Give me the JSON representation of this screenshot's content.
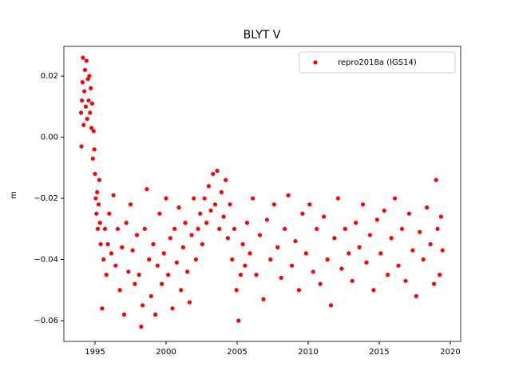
{
  "chart_data": {
    "type": "scatter",
    "title": "BLYT V",
    "y_label": "m",
    "x": [
      1994.02,
      1994.05,
      1994.08,
      1994.12,
      1994.15,
      1994.2,
      1994.25,
      1994.3,
      1994.35,
      1994.4,
      1994.45,
      1994.5,
      1994.55,
      1994.6,
      1994.65,
      1994.7,
      1994.75,
      1994.8,
      1994.85,
      1994.9,
      1994.95,
      1995.0,
      1995.05,
      1995.1,
      1995.15,
      1995.2,
      1995.25,
      1995.3,
      1995.35,
      1995.4,
      1995.5,
      1995.6,
      1995.7,
      1995.8,
      1995.9,
      1996.0,
      1996.15,
      1996.3,
      1996.45,
      1996.6,
      1996.75,
      1996.9,
      1997.05,
      1997.2,
      1997.35,
      1997.5,
      1997.65,
      1997.8,
      1997.95,
      1998.1,
      1998.25,
      1998.35,
      1998.5,
      1998.65,
      1998.8,
      1998.95,
      1999.1,
      1999.25,
      1999.4,
      1999.55,
      1999.7,
      1999.85,
      2000.0,
      2000.15,
      2000.3,
      2000.45,
      2000.6,
      2000.75,
      2000.9,
      2001.05,
      2001.2,
      2001.35,
      2001.5,
      2001.65,
      2001.8,
      2001.95,
      2002.1,
      2002.25,
      2002.4,
      2002.55,
      2002.7,
      2002.85,
      2003.0,
      2003.15,
      2003.3,
      2003.45,
      2003.6,
      2003.75,
      2003.9,
      2004.05,
      2004.2,
      2004.35,
      2004.5,
      2004.65,
      2004.8,
      2004.95,
      2005.1,
      2005.25,
      2005.4,
      2005.55,
      2005.7,
      2005.9,
      2006.1,
      2006.35,
      2006.6,
      2006.85,
      2007.1,
      2007.35,
      2007.6,
      2007.85,
      2008.1,
      2008.35,
      2008.6,
      2008.85,
      2009.1,
      2009.35,
      2009.6,
      2009.85,
      2010.1,
      2010.35,
      2010.6,
      2010.85,
      2011.1,
      2011.35,
      2011.6,
      2011.85,
      2012.1,
      2012.35,
      2012.6,
      2012.85,
      2013.1,
      2013.35,
      2013.6,
      2013.85,
      2014.1,
      2014.35,
      2014.6,
      2014.85,
      2015.1,
      2015.35,
      2015.6,
      2015.85,
      2016.1,
      2016.35,
      2016.6,
      2016.85,
      2017.1,
      2017.35,
      2017.6,
      2017.85,
      2018.1,
      2018.35,
      2018.6,
      2018.85,
      2019.0,
      2019.1,
      2019.25,
      2019.35,
      2019.45
    ],
    "series": [
      {
        "name": "repro2018a (IGS14)",
        "color": "#ff0000",
        "values": [
          0.008,
          -0.003,
          0.012,
          0.018,
          0.026,
          0.004,
          0.015,
          0.022,
          0.01,
          0.025,
          0.006,
          0.019,
          0.012,
          0.02,
          0.008,
          0.016,
          0.003,
          0.011,
          -0.007,
          0.002,
          -0.004,
          -0.012,
          -0.02,
          -0.025,
          -0.018,
          -0.03,
          -0.022,
          -0.014,
          -0.028,
          -0.035,
          -0.056,
          -0.04,
          -0.03,
          -0.045,
          -0.035,
          -0.025,
          -0.038,
          -0.019,
          -0.042,
          -0.03,
          -0.05,
          -0.036,
          -0.058,
          -0.028,
          -0.044,
          -0.022,
          -0.037,
          -0.048,
          -0.032,
          -0.045,
          -0.062,
          -0.055,
          -0.03,
          -0.017,
          -0.04,
          -0.052,
          -0.035,
          -0.058,
          -0.042,
          -0.025,
          -0.048,
          -0.038,
          -0.02,
          -0.045,
          -0.033,
          -0.056,
          -0.03,
          -0.041,
          -0.023,
          -0.05,
          -0.036,
          -0.028,
          -0.044,
          -0.054,
          -0.032,
          -0.02,
          -0.04,
          -0.03,
          -0.025,
          -0.035,
          -0.02,
          -0.028,
          -0.016,
          -0.024,
          -0.012,
          -0.022,
          -0.011,
          -0.03,
          -0.018,
          -0.026,
          -0.014,
          -0.033,
          -0.022,
          -0.04,
          -0.03,
          -0.05,
          -0.06,
          -0.045,
          -0.035,
          -0.042,
          -0.028,
          -0.038,
          -0.02,
          -0.045,
          -0.032,
          -0.053,
          -0.027,
          -0.04,
          -0.022,
          -0.036,
          -0.046,
          -0.03,
          -0.019,
          -0.042,
          -0.034,
          -0.05,
          -0.025,
          -0.038,
          -0.022,
          -0.044,
          -0.03,
          -0.048,
          -0.026,
          -0.04,
          -0.055,
          -0.033,
          -0.02,
          -0.043,
          -0.03,
          -0.038,
          -0.047,
          -0.028,
          -0.036,
          -0.022,
          -0.041,
          -0.032,
          -0.05,
          -0.027,
          -0.038,
          -0.024,
          -0.045,
          -0.033,
          -0.02,
          -0.042,
          -0.03,
          -0.047,
          -0.025,
          -0.037,
          -0.052,
          -0.031,
          -0.04,
          -0.023,
          -0.035,
          -0.048,
          -0.014,
          -0.03,
          -0.045,
          -0.026,
          -0.037
        ]
      }
    ],
    "xlim": [
      1992.81,
      2020.73
    ],
    "xticks": [
      1995,
      2000,
      2005,
      2010,
      2015,
      2020
    ],
    "ylim": [
      -0.0668,
      0.0297
    ],
    "yticks": [
      {
        "value": -0.06,
        "label": "−0.06"
      },
      {
        "value": -0.04,
        "label": "−0.04"
      },
      {
        "value": -0.02,
        "label": "−0.02"
      },
      {
        "value": 0,
        "label": "0.00"
      },
      0.02
    ],
    "legend": "upper right"
  }
}
